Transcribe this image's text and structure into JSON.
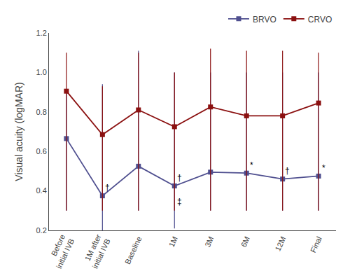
{
  "chart_data": {
    "type": "line",
    "categories": [
      "Before\ninitial IVB",
      "1M after\ninitial IVB",
      "Baseline",
      "1M",
      "3M",
      "6M",
      "12M",
      "Final"
    ],
    "series": [
      {
        "name": "BRVO",
        "color": "#4f4f8f",
        "marker": "square",
        "line_style": "solid",
        "values": [
          0.665,
          0.375,
          0.525,
          0.425,
          0.495,
          0.49,
          0.46,
          0.475
        ],
        "yerr_low": [
          0.365,
          0.175,
          0.225,
          0.215,
          0.195,
          0.19,
          0.16,
          0.175
        ],
        "yerr_high": [
          0.235,
          0.565,
          0.585,
          0.575,
          0.505,
          0.51,
          0.54,
          0.525
        ]
      },
      {
        "name": "CRVO",
        "color": "#8b1010",
        "marker": "square",
        "line_style": "solid",
        "values": [
          0.905,
          0.685,
          0.81,
          0.725,
          0.825,
          0.78,
          0.78,
          0.845
        ],
        "yerr_low": [
          0.605,
          0.385,
          0.51,
          0.425,
          0.525,
          0.48,
          0.48,
          0.545
        ],
        "yerr_high": [
          0.195,
          0.245,
          0.29,
          0.275,
          0.295,
          0.33,
          0.33,
          0.255
        ]
      }
    ],
    "ylabel": "Visual acuity (logMAR)",
    "ylim": [
      0.2,
      1.2
    ],
    "yticks": [
      0.2,
      0.4,
      0.6,
      0.8,
      {
        "value": 1.0,
        "label": "1.0"
      },
      1.2
    ],
    "annotations": [
      {
        "text": "†",
        "x": 1,
        "y": 0.415
      },
      {
        "text": "†",
        "x": 3,
        "y": 0.465
      },
      {
        "text": "‡",
        "x": 3,
        "y": 0.345
      },
      {
        "text": "*",
        "x": 5,
        "y": 0.53
      },
      {
        "text": "†",
        "x": 6,
        "y": 0.5
      },
      {
        "text": "*",
        "x": 7,
        "y": 0.515
      }
    ],
    "grid": false,
    "legend": "top"
  }
}
